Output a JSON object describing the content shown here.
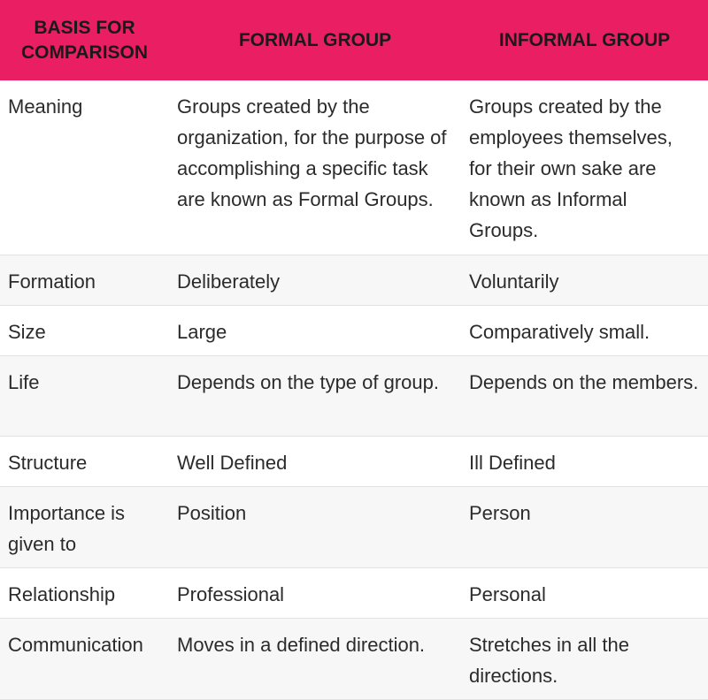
{
  "table": {
    "headers": [
      "BASIS FOR COMPARISON",
      "FORMAL GROUP",
      "INFORMAL GROUP"
    ],
    "rows": [
      {
        "basis": "Meaning",
        "formal": "Groups created by the organization, for the purpose of accomplishing a specific task are known as Formal Groups.",
        "informal": "Groups created by the employees themselves, for their own sake are known as Informal Groups."
      },
      {
        "basis": "Formation",
        "formal": "Deliberately",
        "informal": "Voluntarily"
      },
      {
        "basis": "Size",
        "formal": "Large",
        "informal": "Comparatively small."
      },
      {
        "basis": "Life",
        "formal": "Depends on the type of group.",
        "informal": "Depends on the members."
      },
      {
        "basis": "Structure",
        "formal": "Well Defined",
        "informal": "Ill Defined"
      },
      {
        "basis": "Importance is given to",
        "formal": "Position",
        "informal": "Person"
      },
      {
        "basis": "Relationship",
        "formal": "Professional",
        "informal": "Personal"
      },
      {
        "basis": "Communication",
        "formal": "Moves in a defined direction.",
        "informal": "Stretches in all the directions."
      }
    ]
  },
  "colors": {
    "header_background": "#ea1f63",
    "header_text": "#1a1a1a",
    "stripe": "#f7f7f7"
  }
}
